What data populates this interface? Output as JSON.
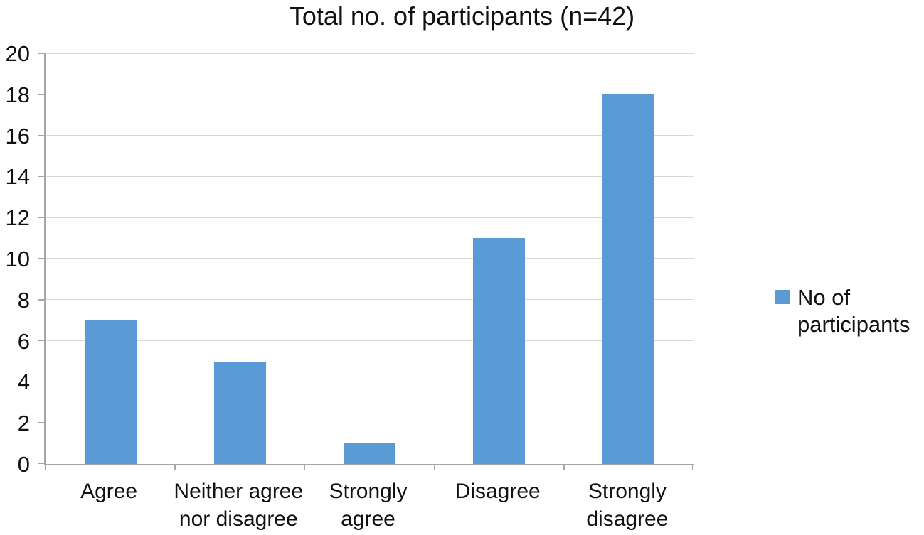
{
  "chart_data": {
    "type": "bar",
    "title": "Total no. of participants (n=42)",
    "categories": [
      "Agree",
      "Neither agree\nnor disagree",
      "Strongly\nagree",
      "Disagree",
      "Strongly\ndisagree"
    ],
    "series": [
      {
        "name": "No of participants",
        "values": [
          7,
          5,
          1,
          11,
          18
        ]
      }
    ],
    "xlabel": "",
    "ylabel": "",
    "ylim": [
      0,
      20
    ],
    "yticks": [
      0,
      2,
      4,
      6,
      8,
      10,
      12,
      14,
      16,
      18,
      20
    ],
    "grid": true,
    "legend_position": "right",
    "legend_label": "No of\nparticipants",
    "colors": {
      "bar": "#5B9BD5",
      "axis_line": "#A6A6A6",
      "gridline": "#D9D9D9",
      "text": "#111111",
      "background": "#FFFFFF"
    }
  }
}
